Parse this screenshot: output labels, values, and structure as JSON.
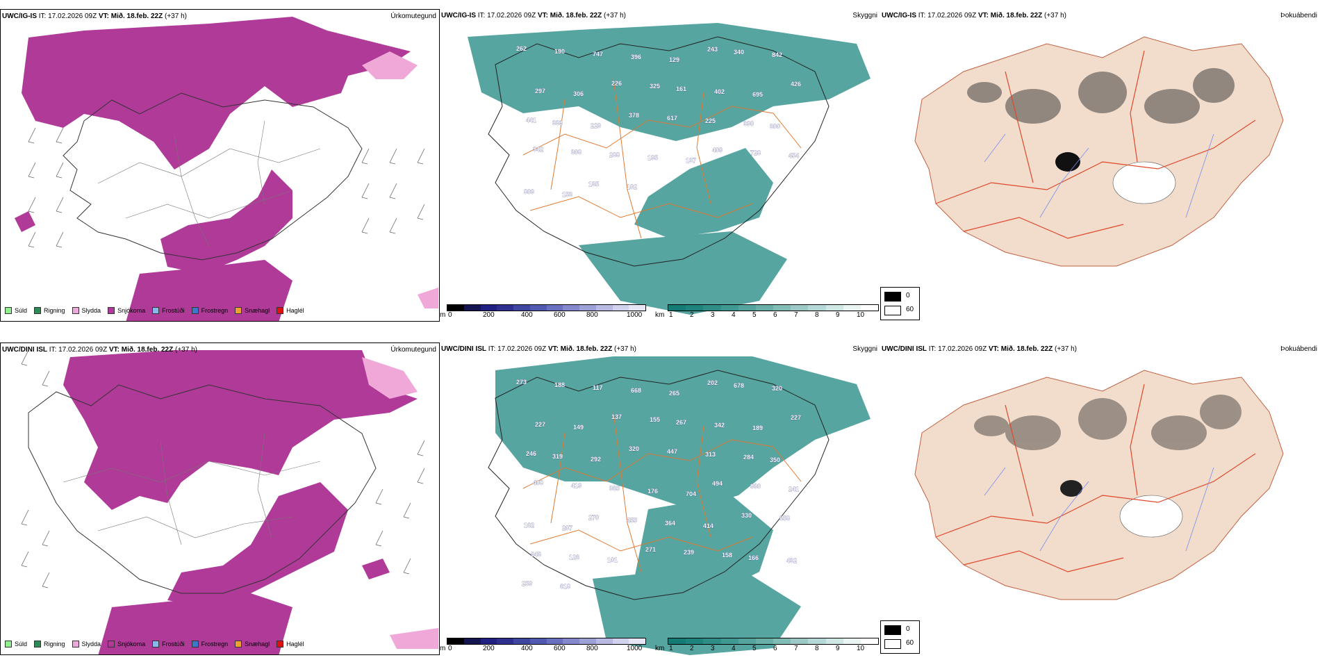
{
  "rows": [
    {
      "model": "UWC/IG-IS",
      "it_label": "IT:",
      "it_value": "17.02.2026 09Z",
      "vt_label": "VT:",
      "vt_value": "Mið. 18.feb. 22Z",
      "lead": "(+37 h)",
      "peaks": [
        "262",
        "190",
        "747",
        "396",
        "129",
        "243",
        "340",
        "842",
        "297",
        "306",
        "226",
        "325",
        "161",
        "402",
        "695",
        "426",
        "441",
        "333",
        "229",
        "378",
        "617",
        "225",
        "390",
        "300",
        "342",
        "308",
        "288",
        "195",
        "137",
        "409",
        "728",
        "454",
        "809",
        "153",
        "135",
        "102"
      ]
    },
    {
      "model": "UWC/DINI ISL",
      "it_label": "IT:",
      "it_value": "17.02.2026 09Z",
      "vt_label": "VT:",
      "vt_value": "Mið. 18.feb. 22Z",
      "lead": "(+37 h)",
      "peaks": [
        "273",
        "188",
        "117",
        "668",
        "265",
        "202",
        "678",
        "320",
        "227",
        "149",
        "137",
        "155",
        "267",
        "342",
        "189",
        "227",
        "246",
        "319",
        "292",
        "320",
        "447",
        "313",
        "284",
        "350",
        "408",
        "419",
        "365",
        "176",
        "704",
        "494",
        "930",
        "241",
        "162",
        "207",
        "270",
        "455",
        "364",
        "414",
        "330",
        "858",
        "943",
        "126",
        "101",
        "271",
        "239",
        "158",
        "166",
        "432",
        "259",
        "618"
      ]
    }
  ],
  "titles": {
    "precip_type": "Úrkomutegund",
    "visibility": "Skyggni",
    "fog": "Þokuábendi"
  },
  "precip_legend": [
    {
      "label": "Súld",
      "color": "#90ee90"
    },
    {
      "label": "Rigning",
      "color": "#2e8b57"
    },
    {
      "label": "Slydda",
      "color": "#f0a8d8"
    },
    {
      "label": "Snjókoma",
      "color": "#b03a98"
    },
    {
      "label": "Frostúði",
      "color": "#87b8ee"
    },
    {
      "label": "Frostregn",
      "color": "#3a78c8"
    },
    {
      "label": "Snæhagl",
      "color": "#f0a030"
    },
    {
      "label": "Haglél",
      "color": "#e01010"
    }
  ],
  "elev_bar": {
    "unit": "m",
    "ticks": [
      "0",
      "200",
      "400",
      "600",
      "800",
      "1000"
    ],
    "colors": [
      "#000000",
      "#141450",
      "#202080",
      "#2e3090",
      "#3e46a0",
      "#5058b0",
      "#6a70c0",
      "#8488cc",
      "#9ea0d8",
      "#b8bae4",
      "#d0d2ee",
      "#e6e6f6"
    ]
  },
  "vis_bar": {
    "unit": "km",
    "ticks": [
      "1",
      "2",
      "3",
      "4",
      "5",
      "6",
      "7",
      "8",
      "9",
      "10"
    ],
    "colors": [
      "#137a74",
      "#1f837d",
      "#2e8d87",
      "#409892",
      "#55a39d",
      "#6aaea9",
      "#82bcb7",
      "#9bcac6",
      "#b5d9d6",
      "#cfe7e5",
      "#e9f4f3",
      "#ffffff"
    ]
  },
  "fog_legend": {
    "dark": "0",
    "light": "60"
  },
  "colors": {
    "snow": "#b03a98",
    "sleet": "#f0a8d8",
    "teal": "#2d8f8a",
    "road": "#e07a30",
    "fog_land": "#f2ddcc",
    "fog_road": "#e0462a",
    "fog_river": "#7a8cf0"
  }
}
